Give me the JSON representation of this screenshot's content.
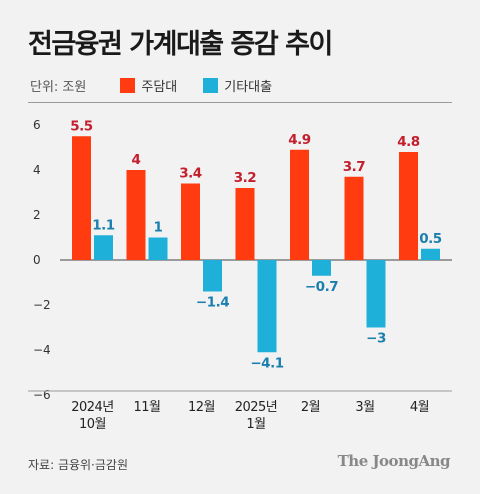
{
  "title": "전금융권 가계대출 증감 추이",
  "unit": "단위: 조원",
  "source": "자료: 금융위·금감원",
  "brand": "The JoongAng",
  "colors": {
    "mortgage": "#ff3b0f",
    "other": "#1fb0d9",
    "label_pos_mortgage": "#c41e2d",
    "label_other": "#1b7fae"
  },
  "chart_data": {
    "type": "bar",
    "categories": [
      [
        "2024년",
        "10월"
      ],
      [
        "11월"
      ],
      [
        "12월"
      ],
      [
        "2025년",
        "1월"
      ],
      [
        "2월"
      ],
      [
        "3월"
      ],
      [
        "4월"
      ]
    ],
    "series": [
      {
        "name": "주담대",
        "values": [
          5.5,
          4,
          3.4,
          3.2,
          4.9,
          3.7,
          4.8
        ],
        "labels": [
          "5.5",
          "4",
          "3.4",
          "3.2",
          "4.9",
          "3.7",
          "4.8"
        ]
      },
      {
        "name": "기타대출",
        "values": [
          1.1,
          1,
          -1.4,
          -4.1,
          -0.7,
          -3,
          0.5
        ],
        "labels": [
          "1.1",
          "1",
          "−1.4",
          "−4.1",
          "−0.7",
          "−3",
          "0.5"
        ]
      }
    ],
    "yticks": [
      "6",
      "4",
      "2",
      "0",
      "−2",
      "−4",
      "−6"
    ],
    "ytick_values": [
      6,
      4,
      2,
      0,
      -2,
      -4,
      -6
    ],
    "ylim": [
      -6,
      6
    ],
    "legend": "top-left",
    "grid": false
  }
}
